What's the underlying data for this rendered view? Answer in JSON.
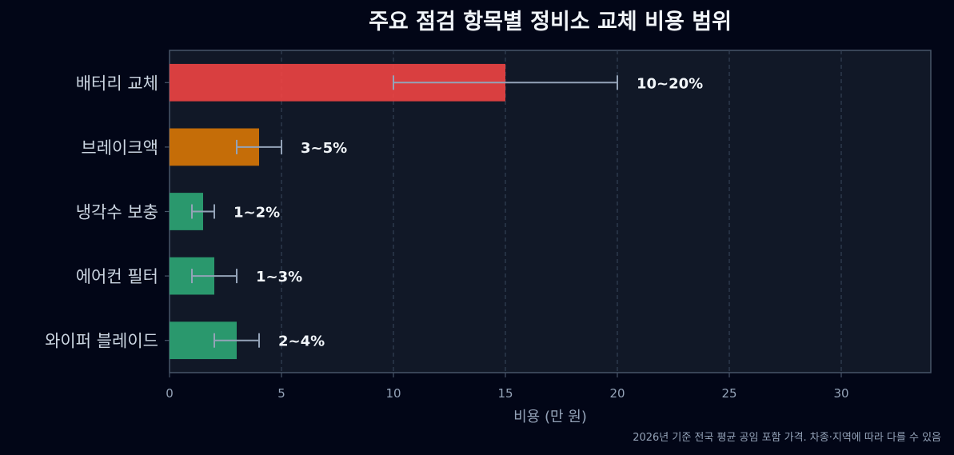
{
  "chart_data": {
    "type": "bar",
    "orientation": "horizontal",
    "title": "주요 점검 항목별 정비소 교체 비용 범위",
    "xlabel": "비용 (만 원)",
    "ylabel": "",
    "xlim": [
      0,
      34
    ],
    "xticks": [
      "0",
      "5",
      "10",
      "15",
      "20",
      "25",
      "30"
    ],
    "grid": "x",
    "categories": [
      "배터리 교체",
      "브레이크액",
      "냉각수 보충",
      "에어컨 필터",
      "와이퍼 블레이드"
    ],
    "values": [
      15,
      4,
      1.5,
      2,
      3
    ],
    "error_low": [
      10,
      3,
      1,
      1,
      2
    ],
    "error_high": [
      20,
      5,
      2,
      3,
      4
    ],
    "data_labels": [
      "10~20%",
      "3~5%",
      "1~2%",
      "1~3%",
      "2~4%"
    ],
    "bar_colors": [
      "#ef4444",
      "#d97706",
      "#2ea675",
      "#2ea675",
      "#2ea675"
    ],
    "footnote": "2026년 기준 전국 평균 공임 포함 가격. 차종·지역에 따라 다를 수 있음"
  },
  "colors": {
    "background": "#020617",
    "plot_background": "#111827",
    "axis": "#475569",
    "grid": "#334155",
    "error_bar": "#94a3b8"
  }
}
